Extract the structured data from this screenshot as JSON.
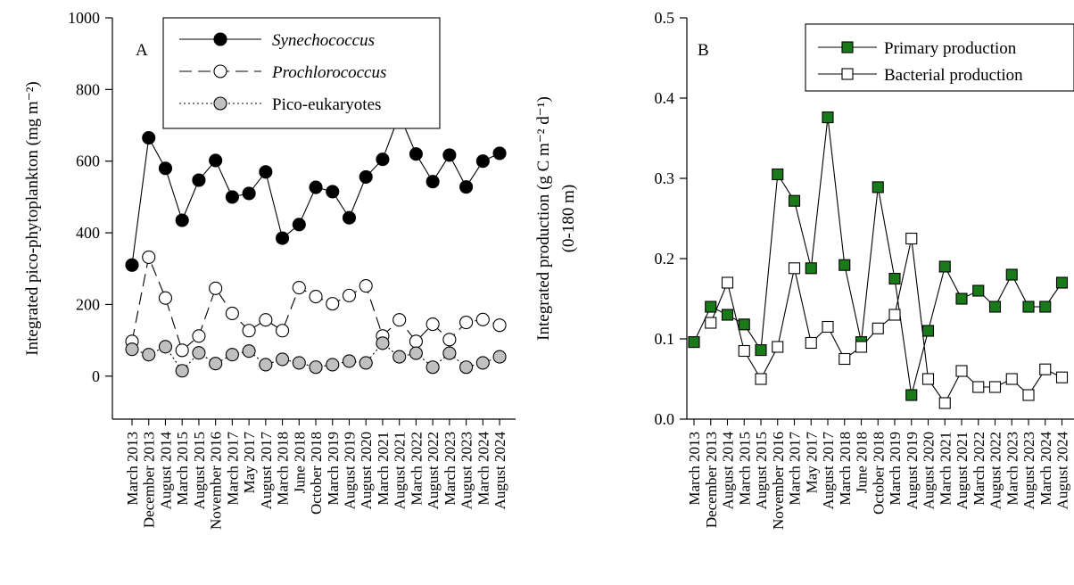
{
  "chart_data": [
    {
      "type": "line",
      "panel_label": "A",
      "title": "",
      "xlabel": "",
      "ylabel": "Integrated pico-phytoplankton (mg m⁻²)",
      "ylim": [
        -120,
        1000
      ],
      "yticks": [
        "0",
        "200",
        "400",
        "600",
        "800",
        "1000"
      ],
      "legend_position": "top-center",
      "categories": [
        "March 2013",
        "December 2013",
        "August 2014",
        "March 2015",
        "August 2015",
        "November 2016",
        "March 2017",
        "May 2017",
        "August 2017",
        "March 2018",
        "June 2018",
        "October 2018",
        "March 2019",
        "August 2019",
        "August 2020",
        "March 2021",
        "August 2021",
        "March 2022",
        "August 2022",
        "March 2023",
        "August 2023",
        "March 2024",
        "August 2024"
      ],
      "series": [
        {
          "name": "Synechococcus",
          "style": "solid line, filled black circles",
          "color": "#000000",
          "values": [
            310,
            665,
            580,
            435,
            547,
            602,
            500,
            510,
            570,
            385,
            423,
            527,
            515,
            442,
            556,
            605,
            730,
            620,
            543,
            617,
            528,
            600,
            622
          ]
        },
        {
          "name": "Prochlorococcus",
          "style": "dashed line, open circles",
          "color": "#000000",
          "values": [
            97,
            332,
            218,
            72,
            112,
            245,
            175,
            127,
            157,
            127,
            247,
            222,
            202,
            225,
            252,
            112,
            157,
            97,
            145,
            102,
            150,
            158,
            142
          ]
        },
        {
          "name": "Pico-eukaryotes",
          "style": "dotted line, grey circles",
          "color": "#c0c0c0",
          "values": [
            75,
            60,
            82,
            15,
            65,
            35,
            60,
            70,
            32,
            47,
            37,
            25,
            32,
            42,
            37,
            92,
            54,
            64,
            25,
            64,
            25,
            37,
            54
          ]
        }
      ]
    },
    {
      "type": "line",
      "panel_label": "B",
      "title": "",
      "xlabel": "",
      "ylabel": "Integrated production (g C m⁻² d⁻¹)",
      "ylabel2": "(0-180 m)",
      "ylim": [
        0,
        0.5
      ],
      "yticks": [
        "0.0",
        "0.1",
        "0.2",
        "0.3",
        "0.4",
        "0.5"
      ],
      "legend_position": "top-right",
      "categories": [
        "March 2013",
        "December 2013",
        "August 2014",
        "March 2015",
        "August 2015",
        "November 2016",
        "March 2017",
        "May 2017",
        "August 2017",
        "March 2018",
        "June 2018",
        "October 2018",
        "March 2019",
        "August 2019",
        "August 2020",
        "March 2021",
        "August 2021",
        "March 2022",
        "August 2022",
        "March 2023",
        "August 2023",
        "March 2024",
        "August 2024"
      ],
      "series": [
        {
          "name": "Primary production",
          "style": "solid line, filled green squares",
          "color": "#1a7a1a",
          "values": [
            0.096,
            0.14,
            0.13,
            0.118,
            0.086,
            0.305,
            0.272,
            0.188,
            0.376,
            0.192,
            0.096,
            0.289,
            0.175,
            0.03,
            0.11,
            0.19,
            0.15,
            0.16,
            0.14,
            0.18,
            0.14,
            0.14,
            0.17
          ]
        },
        {
          "name": "Bacterial production",
          "style": "solid line, open squares",
          "color": "#000000",
          "values": [
            null,
            0.12,
            0.17,
            0.085,
            0.05,
            0.09,
            0.188,
            0.095,
            0.115,
            0.075,
            0.09,
            0.113,
            0.13,
            0.225,
            0.05,
            0.02,
            0.06,
            0.04,
            0.04,
            0.05,
            0.03,
            0.062,
            0.052
          ]
        }
      ]
    }
  ]
}
